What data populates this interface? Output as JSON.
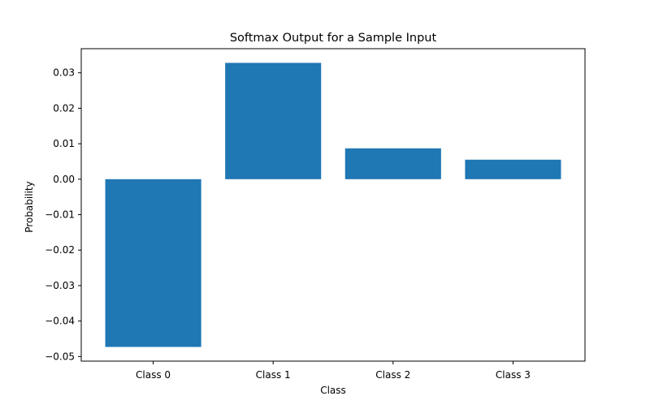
{
  "chart_data": {
    "type": "bar",
    "title": "Softmax Output for a Sample Input",
    "xlabel": "Class",
    "ylabel": "Probability",
    "categories": [
      "Class 0",
      "Class 1",
      "Class 2",
      "Class 3"
    ],
    "values": [
      -0.0473,
      0.0328,
      0.0087,
      0.0055
    ],
    "ylim": [
      -0.0513,
      0.0368
    ],
    "yticks": [
      -0.05,
      -0.04,
      -0.03,
      -0.02,
      -0.01,
      0.0,
      0.01,
      0.02,
      0.03
    ],
    "ytick_labels": [
      "−0.05",
      "−0.04",
      "−0.03",
      "−0.02",
      "−0.01",
      "0.00",
      "0.01",
      "0.02",
      "0.03"
    ],
    "grid": false,
    "legend": false,
    "colors": {
      "bar": "#1f77b4",
      "axis": "#000000",
      "background": "#ffffff"
    }
  }
}
